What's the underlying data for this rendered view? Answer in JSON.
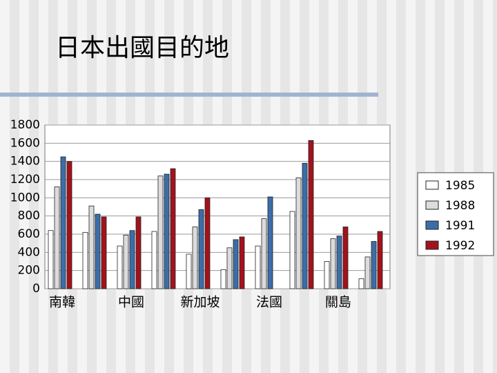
{
  "chart_data": {
    "type": "bar",
    "title": "日本出國目的地",
    "categories": [
      "南韓",
      null,
      "中國",
      null,
      "新加坡",
      null,
      "法國",
      null,
      "關島",
      null
    ],
    "series": [
      {
        "name": "1985",
        "color": "#ffffff",
        "values": [
          640,
          620,
          470,
          630,
          380,
          210,
          470,
          850,
          300,
          110
        ]
      },
      {
        "name": "1988",
        "color": "#dcdcdc",
        "values": [
          1120,
          910,
          590,
          1240,
          680,
          450,
          770,
          1220,
          550,
          350
        ]
      },
      {
        "name": "1991",
        "color": "#3b6ea8",
        "values": [
          1450,
          820,
          640,
          1260,
          870,
          540,
          1010,
          1380,
          580,
          520
        ]
      },
      {
        "name": "1992",
        "color": "#a3121c",
        "values": [
          1400,
          790,
          790,
          1320,
          1000,
          570,
          0,
          1630,
          680,
          630
        ]
      }
    ],
    "ylim": [
      0,
      1800
    ],
    "yticks": [
      0,
      200,
      400,
      600,
      800,
      1000,
      1200,
      1400,
      1600,
      1800
    ],
    "grid": true,
    "legend": "right"
  }
}
